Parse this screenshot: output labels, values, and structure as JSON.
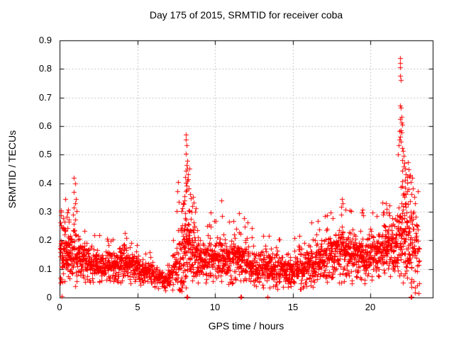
{
  "page": {
    "window_title": "Day 175 of 2015, SRMTID for receiver coba"
  },
  "chart_data": {
    "type": "scatter",
    "title": "Day 175 of 2015, SRMTID for receiver coba",
    "xlabel": "GPS time / hours",
    "ylabel": "SRMTID / TECUs",
    "xlim": [
      0,
      24
    ],
    "ylim": [
      0,
      0.9
    ],
    "xticks": {
      "values": [
        0,
        5,
        10,
        15,
        20
      ],
      "labels": [
        "0",
        "5",
        "10",
        "15",
        "20"
      ]
    },
    "yticks": {
      "values": [
        0,
        0.1,
        0.2,
        0.3,
        0.4,
        0.5,
        0.6,
        0.7,
        0.8,
        0.9
      ],
      "labels": [
        "0",
        "0.1",
        "0.2",
        "0.3",
        "0.4",
        "0.5",
        "0.6",
        "0.7",
        "0.8",
        "0.9"
      ]
    },
    "grid": {
      "on": true,
      "style": "dotted"
    },
    "legend": {
      "visible": false
    },
    "marker": {
      "shape": "plus",
      "size": 7
    },
    "colors": {
      "marker": "#ff0000",
      "grid": "#b4b4b4",
      "axis": "#000000",
      "background": "#ffffff"
    },
    "series": [
      {
        "name": "SRMTID",
        "color": "#ff0000",
        "t_range": [
          0.03,
          23.15
        ],
        "seed": 20150175,
        "envelope_nodes_t_center_spread_density": [
          [
            0.0,
            0.15,
            0.085,
            150
          ],
          [
            0.35,
            0.17,
            0.06,
            130
          ],
          [
            1.0,
            0.15,
            0.055,
            120
          ],
          [
            1.6,
            0.125,
            0.04,
            115
          ],
          [
            2.6,
            0.112,
            0.032,
            110
          ],
          [
            3.3,
            0.11,
            0.03,
            100
          ],
          [
            4.2,
            0.128,
            0.04,
            105
          ],
          [
            5.0,
            0.1,
            0.028,
            100
          ],
          [
            5.8,
            0.088,
            0.024,
            95
          ],
          [
            6.6,
            0.066,
            0.02,
            75
          ],
          [
            7.1,
            0.075,
            0.026,
            85
          ],
          [
            7.7,
            0.135,
            0.055,
            115
          ],
          [
            8.0,
            0.195,
            0.1,
            160
          ],
          [
            8.3,
            0.2,
            0.09,
            150
          ],
          [
            8.7,
            0.15,
            0.06,
            120
          ],
          [
            9.3,
            0.128,
            0.04,
            110
          ],
          [
            10.0,
            0.138,
            0.045,
            112
          ],
          [
            10.8,
            0.128,
            0.045,
            110
          ],
          [
            11.6,
            0.148,
            0.052,
            112
          ],
          [
            12.3,
            0.125,
            0.042,
            108
          ],
          [
            12.7,
            0.105,
            0.038,
            100
          ],
          [
            13.4,
            0.108,
            0.038,
            105
          ],
          [
            14.6,
            0.095,
            0.034,
            100
          ],
          [
            15.4,
            0.105,
            0.038,
            105
          ],
          [
            16.4,
            0.125,
            0.046,
            110
          ],
          [
            17.4,
            0.145,
            0.052,
            112
          ],
          [
            18.2,
            0.162,
            0.055,
            115
          ],
          [
            19.0,
            0.148,
            0.05,
            112
          ],
          [
            20.0,
            0.15,
            0.052,
            112
          ],
          [
            21.0,
            0.172,
            0.058,
            118
          ],
          [
            21.6,
            0.165,
            0.062,
            118
          ],
          [
            21.95,
            0.23,
            0.12,
            150
          ],
          [
            22.3,
            0.215,
            0.105,
            140
          ],
          [
            22.7,
            0.185,
            0.095,
            115
          ],
          [
            23.0,
            0.16,
            0.085,
            95
          ],
          [
            23.15,
            0.14,
            0.075,
            80
          ]
        ],
        "explicit_points": [
          [
            0.07,
            0.305
          ],
          [
            0.1,
            0.288
          ],
          [
            0.05,
            0.262
          ],
          [
            0.13,
            0.242
          ],
          [
            0.06,
            0.052
          ],
          [
            0.15,
            0.004
          ],
          [
            0.1,
            0.065
          ],
          [
            0.48,
            0.298
          ],
          [
            0.55,
            0.308
          ],
          [
            0.44,
            0.282
          ],
          [
            0.6,
            0.272
          ],
          [
            0.93,
            0.42
          ],
          [
            1.0,
            0.4
          ],
          [
            0.9,
            0.37
          ],
          [
            1.04,
            0.345
          ],
          [
            0.99,
            0.33
          ],
          [
            1.08,
            0.302
          ],
          [
            2.55,
            0.218
          ],
          [
            3.05,
            0.205
          ],
          [
            4.18,
            0.225
          ],
          [
            4.3,
            0.208
          ],
          [
            7.55,
            0.302
          ],
          [
            7.58,
            0.372
          ],
          [
            7.62,
            0.405
          ],
          [
            7.66,
            0.335
          ],
          [
            7.85,
            0.302
          ],
          [
            7.92,
            0.33
          ],
          [
            8.02,
            0.354
          ],
          [
            8.05,
            0.34
          ],
          [
            8.1,
            0.57
          ],
          [
            8.13,
            0.553
          ],
          [
            8.16,
            0.532
          ],
          [
            8.1,
            0.504
          ],
          [
            8.2,
            0.478
          ],
          [
            8.17,
            0.464
          ],
          [
            8.22,
            0.452
          ],
          [
            8.14,
            0.443
          ],
          [
            8.28,
            0.431
          ],
          [
            8.06,
            0.421
          ],
          [
            8.24,
            0.414
          ],
          [
            8.1,
            0.402
          ],
          [
            8.19,
            0.391
          ],
          [
            8.3,
            0.381
          ],
          [
            8.12,
            0.371
          ],
          [
            8.38,
            0.361
          ],
          [
            8.45,
            0.346
          ],
          [
            8.58,
            0.351
          ],
          [
            8.62,
            0.331
          ],
          [
            8.55,
            0.321
          ],
          [
            8.7,
            0.301
          ],
          [
            8.18,
            0.002
          ],
          [
            8.22,
            0.002
          ],
          [
            9.7,
            0.298
          ],
          [
            10.42,
            0.34
          ],
          [
            10.45,
            0.285
          ],
          [
            11.2,
            0.268
          ],
          [
            11.55,
            0.295
          ],
          [
            11.62,
            0.002
          ],
          [
            11.68,
            0.002
          ],
          [
            11.9,
            0.248
          ],
          [
            13.35,
            0.002
          ],
          [
            13.39,
            0.002
          ],
          [
            13.45,
            0.215
          ],
          [
            16.2,
            0.262
          ],
          [
            17.45,
            0.298
          ],
          [
            17.55,
            0.278
          ],
          [
            18.15,
            0.345
          ],
          [
            18.22,
            0.33
          ],
          [
            18.4,
            0.308
          ],
          [
            19.5,
            0.308
          ],
          [
            19.55,
            0.288
          ],
          [
            20.1,
            0.298
          ],
          [
            20.8,
            0.298
          ],
          [
            21.0,
            0.33
          ],
          [
            21.05,
            0.31
          ],
          [
            21.15,
            0.298
          ],
          [
            21.2,
            0.288
          ],
          [
            21.9,
            0.837
          ],
          [
            21.92,
            0.82
          ],
          [
            21.9,
            0.806
          ],
          [
            21.92,
            0.777
          ],
          [
            21.95,
            0.761
          ],
          [
            21.9,
            0.671
          ],
          [
            21.94,
            0.665
          ],
          [
            21.97,
            0.632
          ],
          [
            21.88,
            0.625
          ],
          [
            22.0,
            0.612
          ],
          [
            22.04,
            0.604
          ],
          [
            21.93,
            0.585
          ],
          [
            21.85,
            0.583
          ],
          [
            22.0,
            0.578
          ],
          [
            21.9,
            0.562
          ],
          [
            21.84,
            0.552
          ],
          [
            21.96,
            0.545
          ],
          [
            21.8,
            0.532
          ],
          [
            22.05,
            0.522
          ],
          [
            22.1,
            0.512
          ],
          [
            21.78,
            0.5
          ],
          [
            22.14,
            0.495
          ],
          [
            22.02,
            0.48
          ],
          [
            22.18,
            0.47
          ],
          [
            22.12,
            0.458
          ],
          [
            22.24,
            0.452
          ],
          [
            22.06,
            0.443
          ],
          [
            22.28,
            0.432
          ],
          [
            22.34,
            0.422
          ],
          [
            22.2,
            0.412
          ],
          [
            22.38,
            0.402
          ],
          [
            22.44,
            0.448
          ],
          [
            22.5,
            0.425
          ],
          [
            22.55,
            0.43
          ],
          [
            22.6,
            0.405
          ],
          [
            22.68,
            0.418
          ],
          [
            22.74,
            0.382
          ],
          [
            22.8,
            0.352
          ],
          [
            22.86,
            0.33
          ],
          [
            22.64,
            0.362
          ],
          [
            22.46,
            0.38
          ],
          [
            22.36,
            0.372
          ],
          [
            22.26,
            0.362
          ],
          [
            22.16,
            0.352
          ],
          [
            22.76,
            0.3
          ],
          [
            22.9,
            0.282
          ],
          [
            22.95,
            0.252
          ],
          [
            22.6,
            0.002
          ],
          [
            22.65,
            0.002
          ]
        ]
      }
    ]
  }
}
